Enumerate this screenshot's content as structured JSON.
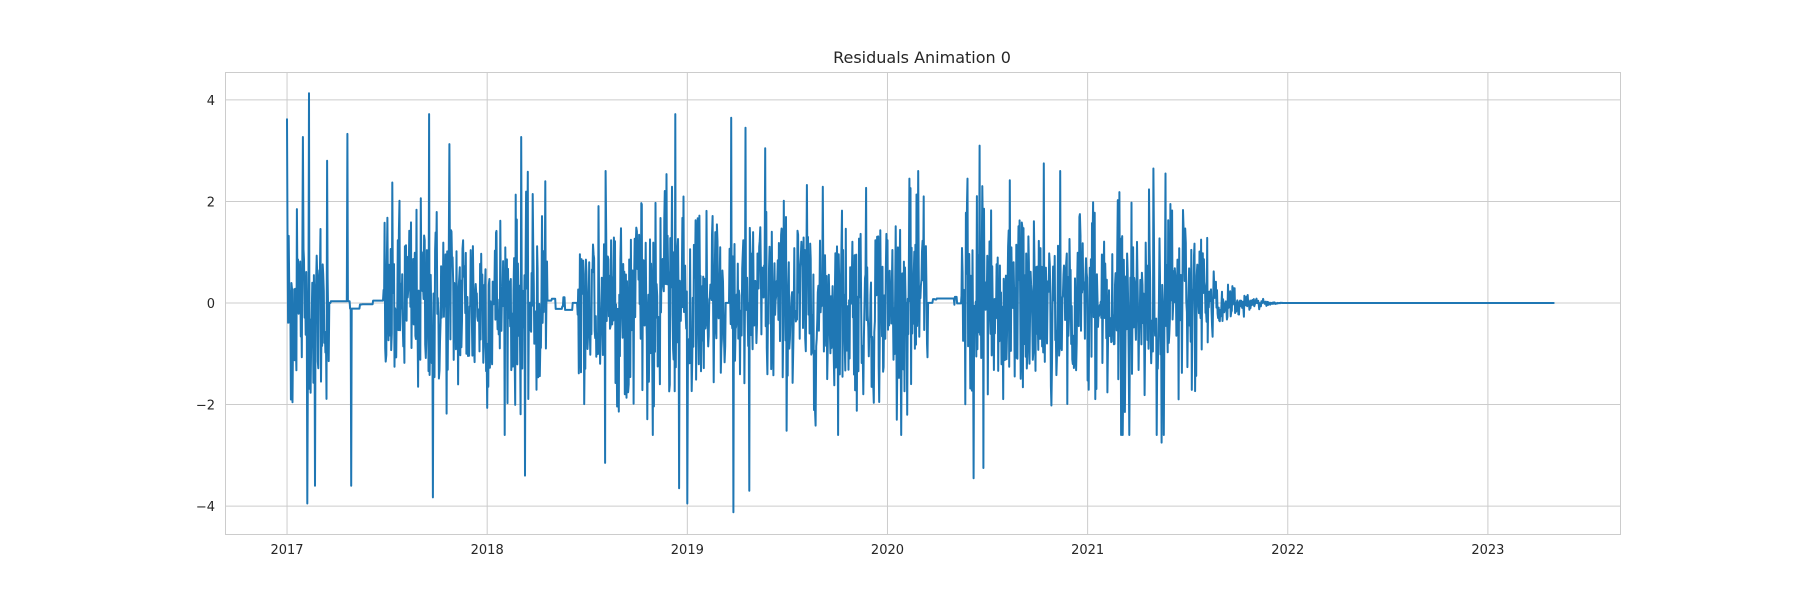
{
  "chart_data": {
    "type": "line",
    "title": "Residuals Animation 0",
    "xlabel": "",
    "ylabel": "",
    "x_ticks": [
      "2017",
      "2018",
      "2019",
      "2020",
      "2021",
      "2022",
      "2023"
    ],
    "y_ticks": [
      "−4",
      "−2",
      "0",
      "2",
      "4"
    ],
    "xlim": [
      2016.69,
      2023.66
    ],
    "ylim": [
      -4.55,
      4.55
    ],
    "grid": true,
    "color": "#1f77b4",
    "series": [
      {
        "x_range": [
          2017.0,
          2023.33
        ],
        "active_windows": [
          [
            2017.0,
            2017.21
          ],
          [
            2017.48,
            2018.3
          ],
          [
            2018.45,
            2019.19
          ],
          [
            2019.21,
            2020.2
          ],
          [
            2020.37,
            2021.6
          ]
        ],
        "tail_decay": [
          2021.6,
          2022.0
        ],
        "peaks": [
          {
            "x": 2017.0,
            "y": 3.62
          },
          {
            "x": 2017.02,
            "y": -1.9
          },
          {
            "x": 2017.05,
            "y": 1.85
          },
          {
            "x": 2017.08,
            "y": 3.27
          },
          {
            "x": 2017.1,
            "y": -3.95
          },
          {
            "x": 2017.11,
            "y": 4.13
          },
          {
            "x": 2017.14,
            "y": -3.6
          },
          {
            "x": 2017.2,
            "y": 2.8
          },
          {
            "x": 2017.3,
            "y": 3.33
          },
          {
            "x": 2017.32,
            "y": -3.6
          },
          {
            "x": 2017.71,
            "y": 3.72
          },
          {
            "x": 2017.73,
            "y": -3.83
          },
          {
            "x": 2017.81,
            "y": 3.13
          },
          {
            "x": 2018.17,
            "y": 3.27
          },
          {
            "x": 2018.19,
            "y": -3.4
          },
          {
            "x": 2018.29,
            "y": 2.4
          },
          {
            "x": 2018.59,
            "y": -3.15
          },
          {
            "x": 2018.94,
            "y": 3.72
          },
          {
            "x": 2018.96,
            "y": -3.65
          },
          {
            "x": 2019.0,
            "y": -3.95
          },
          {
            "x": 2019.22,
            "y": 3.65
          },
          {
            "x": 2019.23,
            "y": -4.12
          },
          {
            "x": 2019.29,
            "y": 3.45
          },
          {
            "x": 2019.31,
            "y": -3.7
          },
          {
            "x": 2019.39,
            "y": 3.05
          },
          {
            "x": 2020.11,
            "y": 2.45
          },
          {
            "x": 2020.18,
            "y": 2.1
          },
          {
            "x": 2020.4,
            "y": 2.45
          },
          {
            "x": 2020.43,
            "y": -3.45
          },
          {
            "x": 2020.46,
            "y": 3.1
          },
          {
            "x": 2020.48,
            "y": -3.25
          },
          {
            "x": 2020.78,
            "y": 2.75
          },
          {
            "x": 2021.33,
            "y": 2.65
          },
          {
            "x": 2021.37,
            "y": -2.75
          },
          {
            "x": 2021.39,
            "y": 2.55
          }
        ],
        "baseline_level": 0.0
      }
    ]
  }
}
